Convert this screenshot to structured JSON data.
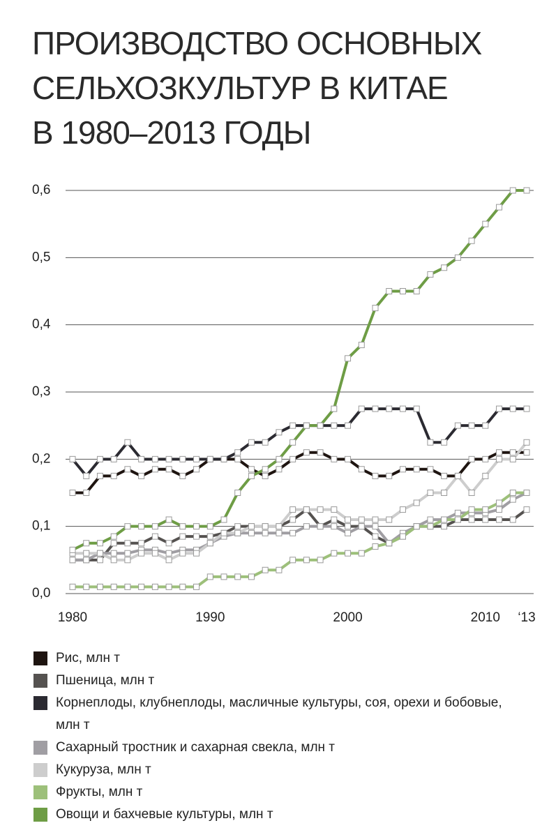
{
  "chart_data": {
    "type": "line",
    "title": [
      "ПРОИЗВОДСТВО ОСНОВНЫХ",
      "СЕЛЬХОЗКУЛЬТУР В КИТАЕ",
      "В 1980–2013 ГОДЫ"
    ],
    "x": [
      1980,
      1981,
      1982,
      1983,
      1984,
      1985,
      1986,
      1987,
      1988,
      1989,
      1990,
      1991,
      1992,
      1993,
      1994,
      1995,
      1996,
      1997,
      1998,
      1999,
      2000,
      2001,
      2002,
      2003,
      2004,
      2005,
      2006,
      2007,
      2008,
      2009,
      2010,
      2011,
      2012,
      2013
    ],
    "xlim": [
      1980,
      2013
    ],
    "xticks": [
      1980,
      1990,
      2000,
      2010,
      {
        "value": 2013,
        "label": "‘13"
      }
    ],
    "ylim": [
      0,
      0.6
    ],
    "yticks": [
      {
        "value": 0,
        "label": "0,0"
      },
      {
        "value": 0.1,
        "label": "0,1"
      },
      {
        "value": 0.2,
        "label": "0,2"
      },
      {
        "value": 0.3,
        "label": "0,3"
      },
      {
        "value": 0.4,
        "label": "0,4"
      },
      {
        "value": 0.5,
        "label": "0,5"
      },
      {
        "value": 0.6,
        "label": "0,6"
      }
    ],
    "grid": true,
    "series": [
      {
        "name": "Рис, млн т",
        "color": "#1e1410",
        "values": [
          0.15,
          0.15,
          0.175,
          0.175,
          0.185,
          0.175,
          0.185,
          0.185,
          0.175,
          0.185,
          0.2,
          0.2,
          0.2,
          0.185,
          0.175,
          0.185,
          0.2,
          0.21,
          0.21,
          0.2,
          0.2,
          0.185,
          0.175,
          0.175,
          0.185,
          0.185,
          0.185,
          0.175,
          0.175,
          0.2,
          0.2,
          0.21,
          0.21,
          0.21
        ]
      },
      {
        "name": "Пшеница, млн т",
        "color": "#555250",
        "values": [
          0.05,
          0.05,
          0.05,
          0.075,
          0.075,
          0.075,
          0.085,
          0.075,
          0.085,
          0.085,
          0.085,
          0.09,
          0.1,
          0.1,
          0.1,
          0.1,
          0.11,
          0.125,
          0.1,
          0.11,
          0.1,
          0.1,
          0.085,
          0.075,
          0.085,
          0.1,
          0.1,
          0.1,
          0.11,
          0.11,
          0.11,
          0.11,
          0.11,
          0.125
        ]
      },
      {
        "name": "Корнеплоды, клубнеплоды, масличные культуры, соя, орехи и бобовые, млн т",
        "color": "#2b2a31",
        "values": [
          0.2,
          0.175,
          0.2,
          0.2,
          0.225,
          0.2,
          0.2,
          0.2,
          0.2,
          0.2,
          0.2,
          0.2,
          0.21,
          0.225,
          0.225,
          0.24,
          0.25,
          0.25,
          0.25,
          0.25,
          0.25,
          0.275,
          0.275,
          0.275,
          0.275,
          0.275,
          0.225,
          0.225,
          0.25,
          0.25,
          0.25,
          0.275,
          0.275,
          0.275
        ]
      },
      {
        "name": "Сахарный тростник и сахарная свекла, млн т",
        "color": "#a09ea3",
        "values": [
          0.05,
          0.05,
          0.06,
          0.06,
          0.06,
          0.065,
          0.065,
          0.06,
          0.065,
          0.065,
          0.075,
          0.085,
          0.09,
          0.09,
          0.09,
          0.09,
          0.09,
          0.1,
          0.1,
          0.1,
          0.09,
          0.1,
          0.1,
          0.075,
          0.09,
          0.1,
          0.11,
          0.11,
          0.12,
          0.12,
          0.12,
          0.125,
          0.14,
          0.15
        ]
      },
      {
        "name": "Кукуруза, млн т",
        "color": "#cdcdcd",
        "values": [
          0.06,
          0.06,
          0.06,
          0.05,
          0.05,
          0.06,
          0.06,
          0.05,
          0.06,
          0.06,
          0.075,
          0.09,
          0.09,
          0.1,
          0.1,
          0.1,
          0.125,
          0.125,
          0.125,
          0.125,
          0.11,
          0.11,
          0.11,
          0.11,
          0.125,
          0.135,
          0.15,
          0.15,
          0.175,
          0.15,
          0.175,
          0.2,
          0.2,
          0.225
        ]
      },
      {
        "name": "Фрукты, млн т",
        "color": "#9dc07a",
        "values": [
          0.01,
          0.01,
          0.01,
          0.01,
          0.01,
          0.01,
          0.01,
          0.01,
          0.01,
          0.01,
          0.025,
          0.025,
          0.025,
          0.025,
          0.035,
          0.035,
          0.05,
          0.05,
          0.05,
          0.06,
          0.06,
          0.06,
          0.07,
          0.075,
          0.085,
          0.1,
          0.1,
          0.11,
          0.11,
          0.125,
          0.125,
          0.135,
          0.15,
          0.15
        ]
      },
      {
        "name": "Овощи и бахчевые культуры, млн т",
        "color": "#6e9d45",
        "values": [
          0.065,
          0.075,
          0.075,
          0.085,
          0.1,
          0.1,
          0.1,
          0.11,
          0.1,
          0.1,
          0.1,
          0.11,
          0.15,
          0.175,
          0.185,
          0.2,
          0.225,
          0.25,
          0.25,
          0.275,
          0.35,
          0.37,
          0.425,
          0.45,
          0.45,
          0.45,
          0.475,
          0.485,
          0.5,
          0.525,
          0.55,
          0.575,
          0.6,
          0.6
        ]
      }
    ]
  }
}
